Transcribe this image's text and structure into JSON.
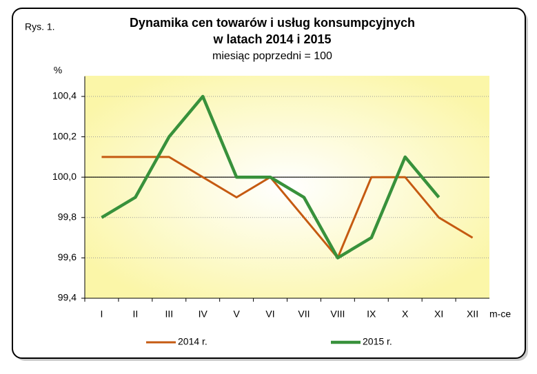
{
  "chart_data": {
    "type": "line",
    "figure_label": "Rys. 1.",
    "title": [
      "Dynamika cen towarów i usług konsumpcyjnych",
      "w latach 2014 i 2015"
    ],
    "subtitle": "miesiąc poprzedni = 100",
    "y_label": "%",
    "x_label": "m-ce",
    "categories": [
      "I",
      "II",
      "III",
      "IV",
      "V",
      "VI",
      "VII",
      "VIII",
      "IX",
      "X",
      "XI",
      "XII"
    ],
    "series": [
      {
        "name": "2014 r.",
        "color": "#c55a11",
        "values": [
          100.1,
          100.1,
          100.1,
          100.0,
          99.9,
          100.0,
          99.8,
          99.6,
          100.0,
          100.0,
          99.8,
          99.7
        ]
      },
      {
        "name": "2015 r.",
        "color": "#38913b",
        "values": [
          99.8,
          99.9,
          100.2,
          100.4,
          100.0,
          100.0,
          99.9,
          99.6,
          99.7,
          100.1,
          99.9,
          null
        ]
      }
    ],
    "ylim": [
      99.4,
      100.5
    ],
    "yticks": [
      {
        "value": 99.4,
        "label": "99,4"
      },
      {
        "value": 99.6,
        "label": "99,6"
      },
      {
        "value": 99.8,
        "label": "99,8"
      },
      {
        "value": 100.0,
        "label": "100,0"
      },
      {
        "value": 100.2,
        "label": "100,2"
      },
      {
        "value": 100.4,
        "label": "100,4"
      }
    ],
    "reference_line": 100.0,
    "grid": true
  }
}
